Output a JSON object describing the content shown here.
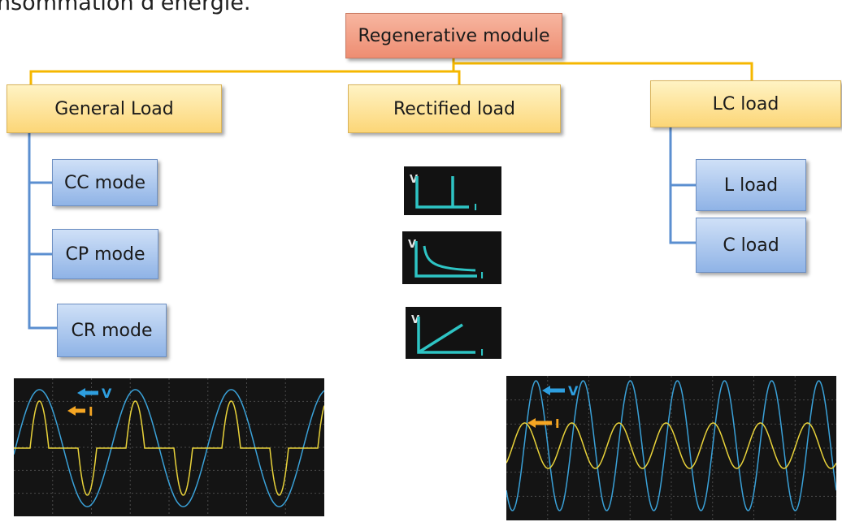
{
  "partial_text": "nsommation d'énergie.",
  "root": {
    "label": "Regenerative module"
  },
  "categories": [
    {
      "label": "General Load"
    },
    {
      "label": "Rectified load"
    },
    {
      "label": "LC load"
    }
  ],
  "general_modes": [
    {
      "label": "CC mode"
    },
    {
      "label": "CP mode"
    },
    {
      "label": "CR mode"
    }
  ],
  "lc_modes": [
    {
      "label": "L load"
    },
    {
      "label": "C load"
    }
  ],
  "curve_icons": [
    {
      "name": "cc-curve-icon",
      "axis_v": "V",
      "axis_i": "I"
    },
    {
      "name": "cp-curve-icon",
      "axis_v": "V",
      "axis_i": "I"
    },
    {
      "name": "cr-curve-icon",
      "axis_v": "V",
      "axis_i": "I"
    }
  ],
  "scopes": [
    {
      "name": "rectified-waveform",
      "v_label": "V",
      "i_label": "I"
    },
    {
      "name": "lc-waveform",
      "v_label": "V",
      "i_label": "I"
    }
  ],
  "colors": {
    "connector": "#f5b700",
    "mode_connector": "#5b8fd0",
    "voltage_trace": "#3aa1d8",
    "current_trace": "#e8d23a",
    "voltage_arrow": "#2e9fe0",
    "current_arrow": "#f5a623",
    "curve": "#2ec4c4"
  }
}
